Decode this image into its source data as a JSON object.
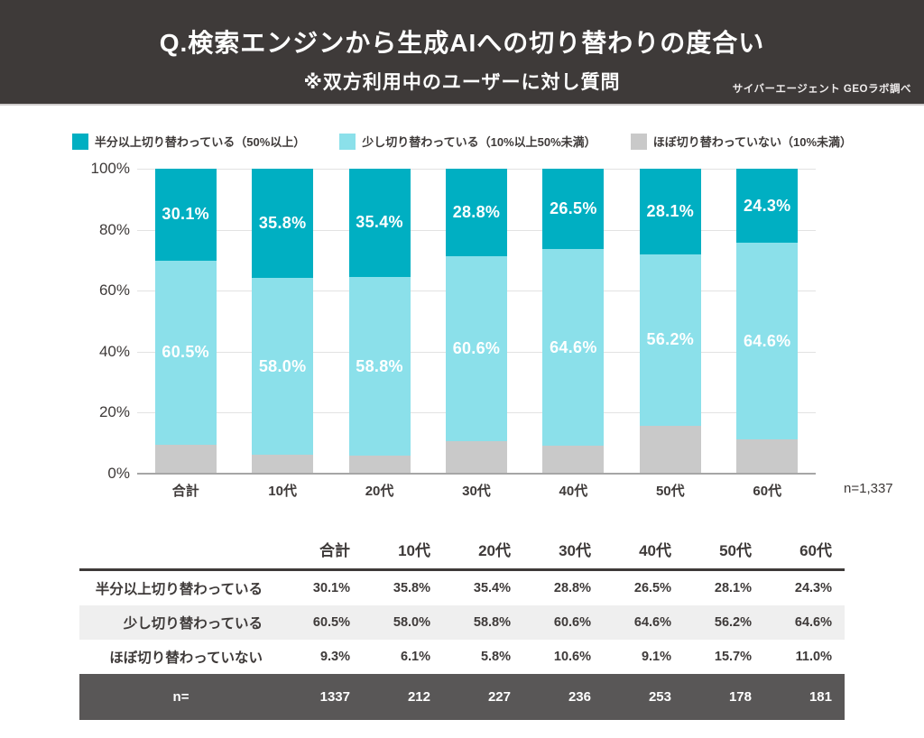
{
  "header": {
    "title": "Q.検索エンジンから生成AIへの切り替わりの度合い",
    "subtitle": "※双方利用中のユーザーに対し質問",
    "credit": "サイバーエージェント GEOラボ調べ"
  },
  "colors": {
    "header_bg": "#3E3A39",
    "series_primary": "#00AFC2",
    "series_secondary": "#8BE0EA",
    "series_tertiary": "#C9C9C9",
    "row_shade": "#EFEFEF",
    "n_row_bg": "#595757"
  },
  "chart_data": {
    "type": "bar",
    "stacked": true,
    "categories": [
      "合計",
      "10代",
      "20代",
      "30代",
      "40代",
      "50代",
      "60代"
    ],
    "series": [
      {
        "name": "半分以上切り替わっている（50%以上）",
        "color": "#00AFC2",
        "values": [
          30.1,
          35.8,
          35.4,
          28.8,
          26.5,
          28.1,
          24.3
        ],
        "value_labels": [
          "30.1%",
          "35.8%",
          "35.4%",
          "28.8%",
          "26.5%",
          "28.1%",
          "24.3%"
        ],
        "show_labels": true
      },
      {
        "name": "少し切り替わっている（10%以上50%未満）",
        "color": "#8BE0EA",
        "values": [
          60.5,
          58.0,
          58.8,
          60.6,
          64.6,
          56.2,
          64.6
        ],
        "value_labels": [
          "60.5%",
          "58.0%",
          "58.8%",
          "60.6%",
          "64.6%",
          "56.2%",
          "64.6%"
        ],
        "show_labels": true
      },
      {
        "name": "ほぼ切り替わっていない（10%未満）",
        "color": "#C9C9C9",
        "values": [
          9.3,
          6.1,
          5.8,
          10.6,
          9.1,
          15.7,
          11.0
        ],
        "value_labels": [
          "9.3%",
          "6.1%",
          "5.8%",
          "10.6%",
          "9.1%",
          "15.7%",
          "11.0%"
        ],
        "show_labels": false
      }
    ],
    "ylim": [
      0,
      100
    ],
    "yticks": [
      "0%",
      "20%",
      "40%",
      "60%",
      "80%",
      "100%"
    ],
    "grid": true,
    "legend_position": "top",
    "n_total": "n=1,337"
  },
  "table": {
    "headers": [
      "",
      "合計",
      "10代",
      "20代",
      "30代",
      "40代",
      "50代",
      "60代"
    ],
    "rows": [
      {
        "label": "半分以上切り替わっている",
        "values": [
          "30.1%",
          "35.8%",
          "35.4%",
          "28.8%",
          "26.5%",
          "28.1%",
          "24.3%"
        ],
        "shade": false
      },
      {
        "label": "少し切り替わっている",
        "values": [
          "60.5%",
          "58.0%",
          "58.8%",
          "60.6%",
          "64.6%",
          "56.2%",
          "64.6%"
        ],
        "shade": true
      },
      {
        "label": "ほぼ切り替わっていない",
        "values": [
          "9.3%",
          "6.1%",
          "5.8%",
          "10.6%",
          "9.1%",
          "15.7%",
          "11.0%"
        ],
        "shade": false
      }
    ],
    "n_row": {
      "label": "n=",
      "values": [
        "1337",
        "212",
        "227",
        "236",
        "253",
        "178",
        "181"
      ]
    }
  }
}
